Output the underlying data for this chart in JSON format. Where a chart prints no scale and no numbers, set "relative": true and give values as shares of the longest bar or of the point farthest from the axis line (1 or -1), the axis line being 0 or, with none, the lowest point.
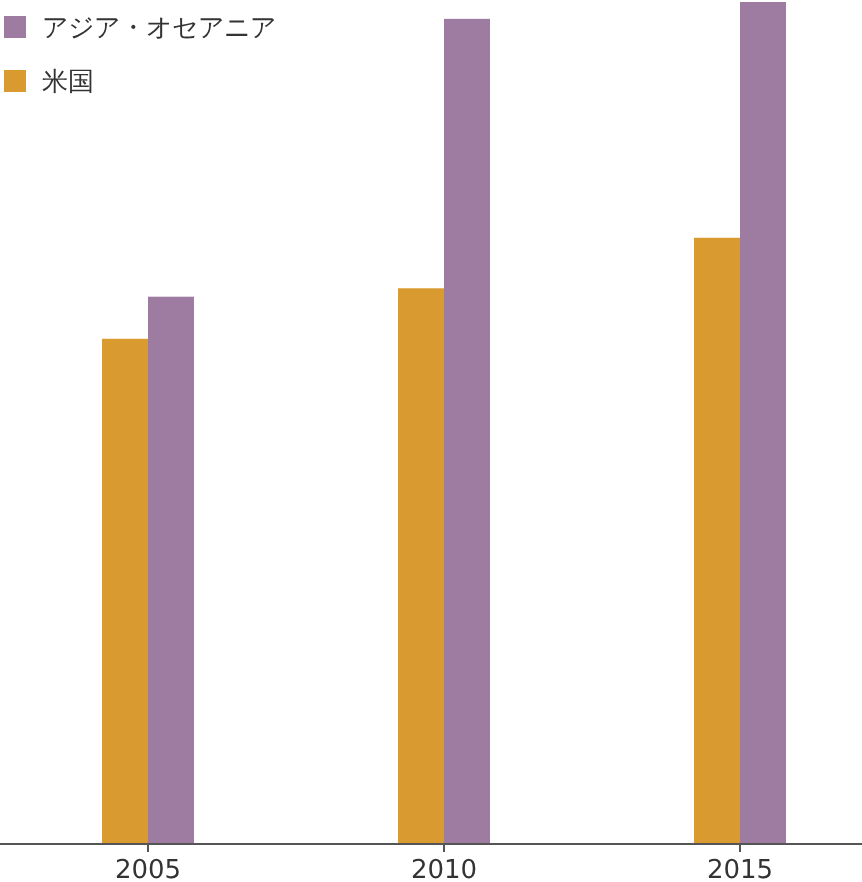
{
  "chart_data": {
    "type": "bar",
    "relative": true,
    "categories": [
      "2005",
      "2010",
      "2015"
    ],
    "legend": "top left",
    "series": [
      {
        "name": "米国",
        "color": "#d99a2f",
        "values": [
          0.6,
          0.66,
          0.72
        ]
      },
      {
        "name": "アジア・オセアニア",
        "color": "#9e7ba0",
        "values": [
          0.65,
          0.98,
          1
        ]
      }
    ]
  }
}
